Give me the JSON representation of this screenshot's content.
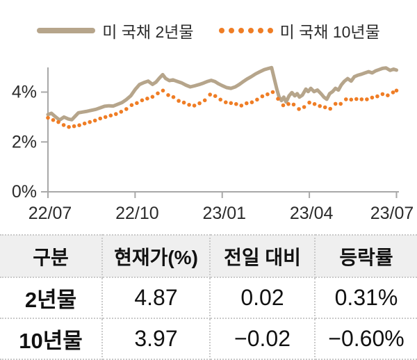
{
  "legend": {
    "label_2y": "미 국채 2년물",
    "label_10y": "미 국채 10년물"
  },
  "colors": {
    "line_2y": "#b6a58b",
    "line_10y": "#ef7d25",
    "axis": "#a8a8a8",
    "text": "#2b2b2b",
    "table_border": "#c9c9c9",
    "header_bg": "#efefef"
  },
  "chart_data": {
    "type": "line",
    "title": "",
    "xlabel": "",
    "ylabel": "",
    "grid": false,
    "legend_position": "top-center",
    "x_unit": "months since 2022-07",
    "x_axis": {
      "ticks": [
        {
          "label": "22/07",
          "t": 0
        },
        {
          "label": "22/10",
          "t": 3
        },
        {
          "label": "23/01",
          "t": 6
        },
        {
          "label": "23/04",
          "t": 9
        },
        {
          "label": "23/07",
          "t": 12
        }
      ]
    },
    "y_axis": {
      "unit": "%",
      "range": [
        0,
        5
      ],
      "ticks": [
        {
          "label": "0%",
          "v": 0
        },
        {
          "label": "2%",
          "v": 2
        },
        {
          "label": "4%",
          "v": 4
        }
      ]
    },
    "series": [
      {
        "name": "미 국채 2년물",
        "style": "solid",
        "color": "#b6a58b",
        "points": [
          [
            0,
            3.1
          ],
          [
            0.12,
            3.15
          ],
          [
            0.25,
            3.02
          ],
          [
            0.4,
            2.88
          ],
          [
            0.55,
            3.0
          ],
          [
            0.7,
            2.92
          ],
          [
            0.82,
            2.89
          ],
          [
            0.95,
            3.05
          ],
          [
            1.05,
            3.17
          ],
          [
            1.2,
            3.2
          ],
          [
            1.35,
            3.23
          ],
          [
            1.5,
            3.27
          ],
          [
            1.65,
            3.31
          ],
          [
            1.8,
            3.37
          ],
          [
            1.95,
            3.43
          ],
          [
            2.1,
            3.45
          ],
          [
            2.25,
            3.44
          ],
          [
            2.4,
            3.51
          ],
          [
            2.55,
            3.58
          ],
          [
            2.7,
            3.7
          ],
          [
            2.85,
            3.85
          ],
          [
            3,
            4.1
          ],
          [
            3.15,
            4.3
          ],
          [
            3.3,
            4.38
          ],
          [
            3.45,
            4.44
          ],
          [
            3.6,
            4.31
          ],
          [
            3.72,
            4.4
          ],
          [
            3.85,
            4.58
          ],
          [
            3.95,
            4.7
          ],
          [
            4.05,
            4.55
          ],
          [
            4.18,
            4.46
          ],
          [
            4.3,
            4.49
          ],
          [
            4.45,
            4.43
          ],
          [
            4.6,
            4.37
          ],
          [
            4.75,
            4.28
          ],
          [
            4.9,
            4.21
          ],
          [
            5.05,
            4.25
          ],
          [
            5.2,
            4.3
          ],
          [
            5.35,
            4.36
          ],
          [
            5.5,
            4.43
          ],
          [
            5.62,
            4.47
          ],
          [
            5.75,
            4.42
          ],
          [
            5.88,
            4.33
          ],
          [
            6,
            4.26
          ],
          [
            6.15,
            4.18
          ],
          [
            6.3,
            4.15
          ],
          [
            6.45,
            4.21
          ],
          [
            6.58,
            4.3
          ],
          [
            6.7,
            4.4
          ],
          [
            6.85,
            4.52
          ],
          [
            7,
            4.62
          ],
          [
            7.15,
            4.73
          ],
          [
            7.3,
            4.82
          ],
          [
            7.45,
            4.9
          ],
          [
            7.6,
            4.95
          ],
          [
            7.7,
            4.98
          ],
          [
            7.78,
            4.6
          ],
          [
            7.88,
            4.12
          ],
          [
            7.96,
            3.8
          ],
          [
            8.04,
            3.66
          ],
          [
            8.12,
            3.8
          ],
          [
            8.2,
            3.6
          ],
          [
            8.3,
            3.85
          ],
          [
            8.4,
            3.98
          ],
          [
            8.5,
            3.85
          ],
          [
            8.58,
            3.94
          ],
          [
            8.66,
            3.8
          ],
          [
            8.76,
            3.88
          ],
          [
            8.88,
            4.12
          ],
          [
            8.96,
            4.02
          ],
          [
            9.05,
            4.15
          ],
          [
            9.16,
            4.02
          ],
          [
            9.28,
            4.08
          ],
          [
            9.4,
            3.94
          ],
          [
            9.5,
            3.8
          ],
          [
            9.6,
            3.71
          ],
          [
            9.7,
            3.94
          ],
          [
            9.8,
            4.02
          ],
          [
            9.9,
            4.15
          ],
          [
            10,
            4.08
          ],
          [
            10.1,
            4.29
          ],
          [
            10.2,
            4.43
          ],
          [
            10.32,
            4.54
          ],
          [
            10.44,
            4.44
          ],
          [
            10.55,
            4.62
          ],
          [
            10.68,
            4.68
          ],
          [
            10.8,
            4.72
          ],
          [
            10.92,
            4.77
          ],
          [
            11.04,
            4.82
          ],
          [
            11.16,
            4.77
          ],
          [
            11.28,
            4.85
          ],
          [
            11.4,
            4.9
          ],
          [
            11.52,
            4.95
          ],
          [
            11.64,
            4.97
          ],
          [
            11.78,
            4.87
          ],
          [
            11.9,
            4.92
          ],
          [
            12,
            4.88
          ]
        ]
      },
      {
        "name": "미 국채 10년물",
        "style": "dotted",
        "color": "#ef7d25",
        "points": [
          [
            0,
            2.97
          ],
          [
            0.18,
            2.88
          ],
          [
            0.36,
            2.8
          ],
          [
            0.54,
            2.68
          ],
          [
            0.72,
            2.6
          ],
          [
            0.9,
            2.63
          ],
          [
            1.08,
            2.67
          ],
          [
            1.26,
            2.74
          ],
          [
            1.44,
            2.8
          ],
          [
            1.62,
            2.86
          ],
          [
            1.8,
            2.94
          ],
          [
            1.98,
            3.0
          ],
          [
            2.16,
            3.06
          ],
          [
            2.34,
            3.12
          ],
          [
            2.52,
            3.21
          ],
          [
            2.7,
            3.32
          ],
          [
            2.88,
            3.48
          ],
          [
            3.06,
            3.56
          ],
          [
            3.24,
            3.67
          ],
          [
            3.42,
            3.74
          ],
          [
            3.6,
            3.81
          ],
          [
            3.78,
            3.95
          ],
          [
            3.96,
            4.06
          ],
          [
            4.14,
            3.88
          ],
          [
            4.32,
            3.8
          ],
          [
            4.5,
            3.65
          ],
          [
            4.68,
            3.58
          ],
          [
            4.86,
            3.49
          ],
          [
            5.04,
            3.46
          ],
          [
            5.22,
            3.55
          ],
          [
            5.4,
            3.67
          ],
          [
            5.58,
            3.9
          ],
          [
            5.76,
            3.84
          ],
          [
            5.94,
            3.7
          ],
          [
            6.12,
            3.59
          ],
          [
            6.3,
            3.56
          ],
          [
            6.48,
            3.52
          ],
          [
            6.66,
            3.46
          ],
          [
            6.84,
            3.55
          ],
          [
            7.02,
            3.59
          ],
          [
            7.2,
            3.7
          ],
          [
            7.38,
            3.83
          ],
          [
            7.56,
            3.91
          ],
          [
            7.74,
            4.0
          ],
          [
            7.92,
            3.73
          ],
          [
            8.1,
            3.47
          ],
          [
            8.28,
            3.52
          ],
          [
            8.46,
            3.5
          ],
          [
            8.64,
            3.32
          ],
          [
            8.82,
            3.4
          ],
          [
            9,
            3.58
          ],
          [
            9.18,
            3.52
          ],
          [
            9.36,
            3.44
          ],
          [
            9.54,
            3.39
          ],
          [
            9.72,
            3.33
          ],
          [
            9.9,
            3.53
          ],
          [
            10.08,
            3.53
          ],
          [
            10.26,
            3.71
          ],
          [
            10.44,
            3.7
          ],
          [
            10.62,
            3.72
          ],
          [
            10.8,
            3.71
          ],
          [
            10.98,
            3.71
          ],
          [
            11.16,
            3.78
          ],
          [
            11.34,
            3.83
          ],
          [
            11.52,
            3.92
          ],
          [
            11.7,
            3.87
          ],
          [
            11.88,
            3.99
          ],
          [
            12,
            4.06
          ]
        ]
      }
    ]
  },
  "table": {
    "columns": [
      "구분",
      "현재가(%)",
      "전일 대비",
      "등락률"
    ],
    "rows": [
      {
        "label": "2년물",
        "price": "4.87",
        "change": "0.02",
        "pct": "0.31%"
      },
      {
        "label": "10년물",
        "price": "3.97",
        "change": "−0.02",
        "pct": "−0.60%"
      }
    ]
  }
}
